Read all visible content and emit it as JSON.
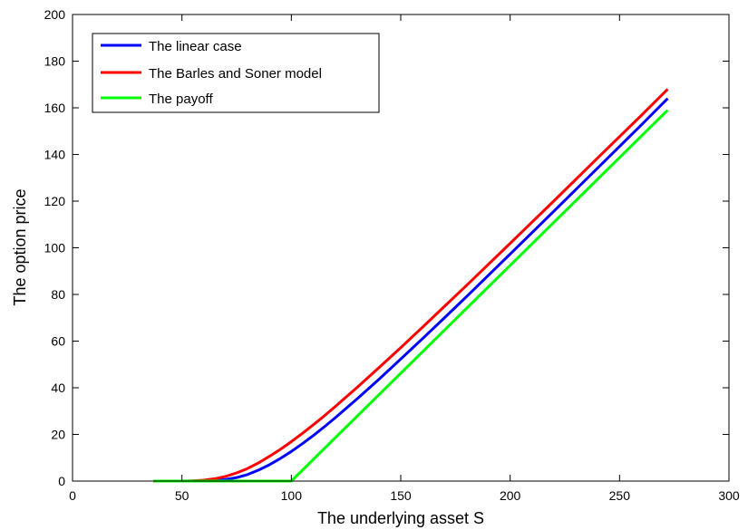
{
  "chart_data": {
    "type": "line",
    "xlabel": "The underlying asset S",
    "ylabel": "The option price",
    "xlim": [
      0,
      300
    ],
    "ylim": [
      0,
      200
    ],
    "xticks": [
      0,
      50,
      100,
      150,
      200,
      250,
      300
    ],
    "yticks": [
      0,
      20,
      40,
      60,
      80,
      100,
      120,
      140,
      160,
      180,
      200
    ],
    "grid": false,
    "legend_position": "top-left",
    "series": [
      {
        "name": "The linear case",
        "color": "#0000ff",
        "x": [
          37,
          50,
          60,
          65,
          70,
          75,
          80,
          85,
          90,
          95,
          100,
          105,
          110,
          115,
          120,
          130,
          140,
          150,
          160,
          170,
          180,
          200,
          220,
          240,
          260,
          272
        ],
        "y": [
          0,
          0,
          0.1,
          0.3,
          0.7,
          1.5,
          2.8,
          4.7,
          7.0,
          9.7,
          12.7,
          16.0,
          19.5,
          23.2,
          27.1,
          35.2,
          43.6,
          52.3,
          61.1,
          70.0,
          79.0,
          97.3,
          115.7,
          134.2,
          152.7,
          164
        ]
      },
      {
        "name": "The Barles and Soner model",
        "color": "#ff0000",
        "x": [
          37,
          50,
          55,
          60,
          65,
          70,
          75,
          80,
          85,
          90,
          95,
          100,
          105,
          110,
          115,
          120,
          130,
          140,
          150,
          160,
          170,
          180,
          200,
          220,
          240,
          260,
          272
        ],
        "y": [
          0,
          0,
          0.1,
          0.4,
          1.0,
          2.0,
          3.5,
          5.4,
          7.8,
          10.6,
          13.6,
          16.9,
          20.4,
          24.1,
          27.9,
          31.9,
          40.1,
          48.6,
          57.2,
          66.0,
          74.9,
          83.8,
          101.9,
          120.1,
          138.5,
          156.8,
          168
        ]
      },
      {
        "name": "The payoff",
        "color": "#00ff00",
        "x": [
          37,
          100,
          272
        ],
        "y": [
          0,
          0,
          159
        ]
      }
    ]
  }
}
